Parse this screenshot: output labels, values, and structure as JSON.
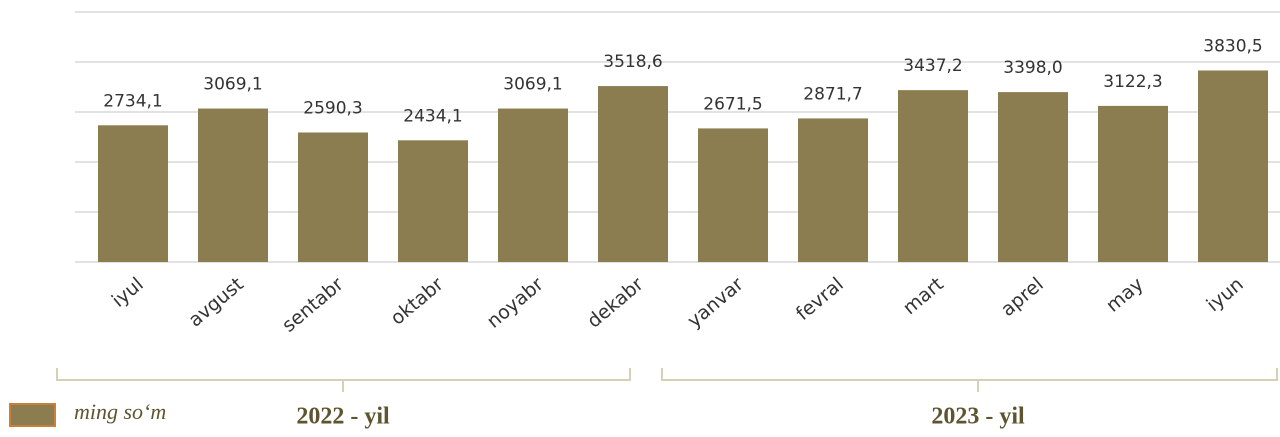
{
  "chart_data": {
    "type": "bar",
    "categories": [
      "iyul",
      "avgust",
      "sentabr",
      "oktabr",
      "noyabr",
      "dekabr",
      "yanvar",
      "fevral",
      "mart",
      "aprel",
      "may",
      "iyun"
    ],
    "series": [
      {
        "name": "ming so‘m",
        "color": "#8b7d50",
        "values": [
          2734.1,
          3069.1,
          2590.3,
          2434.1,
          3069.1,
          3518.6,
          2671.5,
          2871.7,
          3437.2,
          3398.0,
          3122.3,
          3830.5
        ],
        "value_labels": [
          "2734,1",
          "3069,1",
          "2590,3",
          "2434,1",
          "3069,1",
          "3518,6",
          "2671,5",
          "2871,7",
          "3437,2",
          "3398,0",
          "3122,3",
          "3830,5"
        ]
      }
    ],
    "group_labels": [
      "2022 - yil",
      "2023 - yil"
    ],
    "ylim": [
      0,
      5000
    ],
    "yticks": [
      0,
      1000,
      2000,
      3000,
      4000,
      5000
    ],
    "grid": true
  }
}
